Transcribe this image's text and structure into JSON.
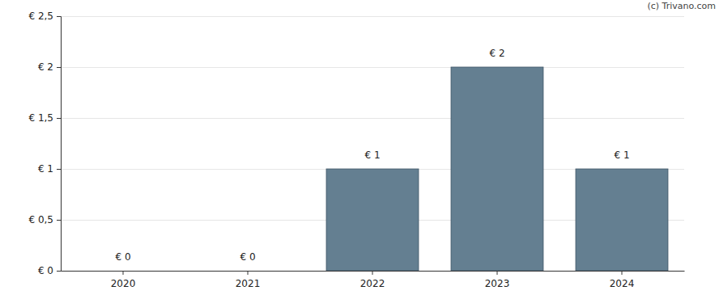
{
  "chart_data": {
    "type": "bar",
    "categories": [
      "2020",
      "2021",
      "2022",
      "2023",
      "2024"
    ],
    "values": [
      0,
      0,
      1,
      2,
      1
    ],
    "value_labels": [
      "€ 0",
      "€ 0",
      "€ 1",
      "€ 2",
      "€ 1"
    ],
    "data_labels": true,
    "color": "#647f91",
    "ylim": [
      0,
      2.5
    ],
    "yticks": [
      {
        "value": 0,
        "label": "€ 0"
      },
      {
        "value": 0.5,
        "label": "€ 0,5"
      },
      {
        "value": 1,
        "label": "€ 1"
      },
      {
        "value": 1.5,
        "label": "€ 1,5"
      },
      {
        "value": 2,
        "label": "€ 2"
      },
      {
        "value": 2.5,
        "label": "€ 2,5"
      }
    ],
    "grid": true,
    "annotations": [
      "(c) Trivano.com"
    ]
  }
}
